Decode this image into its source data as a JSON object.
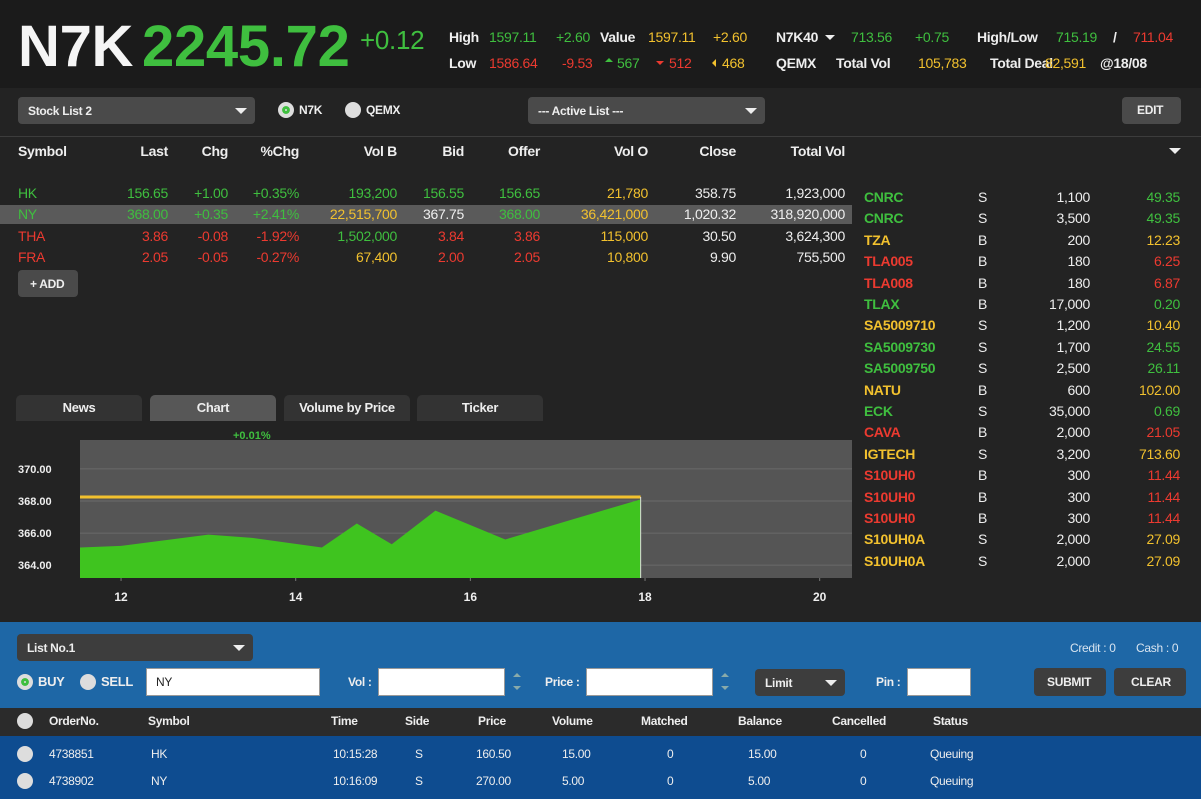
{
  "header": {
    "symbol": "N7K",
    "price": "2245.72",
    "change": "+0.12"
  },
  "stats": [
    {
      "text": "High",
      "color": "white"
    },
    {
      "text": "1597.11",
      "color": "green"
    },
    {
      "text": "+2.60",
      "color": "green"
    },
    {
      "text": "Value",
      "color": "white"
    },
    {
      "text": "1597.11",
      "color": "yellow"
    },
    {
      "text": "+2.60",
      "color": "yellow"
    },
    {
      "text": "N7K40",
      "color": "white"
    },
    {
      "text": "713.56",
      "color": "green"
    },
    {
      "text": "+0.75",
      "color": "green"
    },
    {
      "text": "High/Low",
      "color": "white"
    },
    {
      "text": "715.19",
      "color": "green"
    },
    {
      "text": "/",
      "color": "white"
    },
    {
      "text": "711.04",
      "color": "red"
    },
    {
      "text": "Low",
      "color": "white"
    },
    {
      "text": "1586.64",
      "color": "red"
    },
    {
      "text": "-9.53",
      "color": "red"
    },
    {
      "text": "567",
      "color": "green"
    },
    {
      "text": "512",
      "color": "red"
    },
    {
      "text": "468",
      "color": "yellow"
    },
    {
      "text": "QEMX",
      "color": "white"
    },
    {
      "text": "Total Vol",
      "color": "white"
    },
    {
      "text": "105,783",
      "color": "yellow"
    },
    {
      "text": "Total Deal",
      "color": "white"
    },
    {
      "text": "82,591",
      "color": "yellow"
    },
    {
      "text": "@18/08",
      "color": "white"
    }
  ],
  "controls": {
    "stock_list": "Stock List 2",
    "market_options": [
      "N7K",
      "QEMX"
    ],
    "selected_market": 0,
    "active_list": "--- Active List ---",
    "edit": "EDIT"
  },
  "watchlist": {
    "columns": [
      "Symbol",
      "Last",
      "Chg",
      "%Chg",
      "Vol B",
      "Bid",
      "Offer",
      "Vol O",
      "Close",
      "Total Vol"
    ],
    "selected_row": 1,
    "rows": [
      {
        "cells": [
          "HK",
          "156.65",
          "+1.00",
          "+0.35%",
          "193,200",
          "156.55",
          "156.65",
          "21,780",
          "358.75",
          "1,923,000"
        ],
        "colors": [
          "green",
          "green",
          "green",
          "green",
          "green",
          "green",
          "green",
          "yellow",
          "white",
          "white"
        ]
      },
      {
        "cells": [
          "NY",
          "368.00",
          "+0.35",
          "+2.41%",
          "22,515,700",
          "367.75",
          "368.00",
          "36,421,000",
          "1,020.32",
          "318,920,000"
        ],
        "colors": [
          "green",
          "green",
          "green",
          "green",
          "yellow",
          "white",
          "green",
          "yellow",
          "white",
          "white"
        ]
      },
      {
        "cells": [
          "THA",
          "3.86",
          "-0.08",
          "-1.92%",
          "1,502,000",
          "3.84",
          "3.86",
          "115,000",
          "30.50",
          "3,624,300"
        ],
        "colors": [
          "red",
          "red",
          "red",
          "red",
          "green",
          "red",
          "red",
          "yellow",
          "white",
          "white"
        ]
      },
      {
        "cells": [
          "FRA",
          "2.05",
          "-0.05",
          "-0.27%",
          "67,400",
          "2.00",
          "2.05",
          "10,800",
          "9.90",
          "755,500"
        ],
        "colors": [
          "red",
          "red",
          "red",
          "red",
          "yellow",
          "red",
          "red",
          "yellow",
          "white",
          "white"
        ]
      }
    ],
    "add_button": "+ ADD"
  },
  "ticker": [
    {
      "cells": [
        "CNRC",
        "S",
        "1,100",
        "49.35"
      ],
      "color": "green"
    },
    {
      "cells": [
        "CNRC",
        "S",
        "3,500",
        "49.35"
      ],
      "color": "green"
    },
    {
      "cells": [
        "TZA",
        "B",
        "200",
        "12.23"
      ],
      "color": "yellow"
    },
    {
      "cells": [
        "TLA005",
        "B",
        "180",
        "6.25"
      ],
      "color": "red"
    },
    {
      "cells": [
        "TLA008",
        "B",
        "180",
        "6.87"
      ],
      "color": "red"
    },
    {
      "cells": [
        "TLAX",
        "B",
        "17,000",
        "0.20"
      ],
      "color": "green"
    },
    {
      "cells": [
        "SA5009710",
        "S",
        "1,200",
        "10.40"
      ],
      "color": "yellow"
    },
    {
      "cells": [
        "SA5009730",
        "S",
        "1,700",
        "24.55"
      ],
      "color": "green"
    },
    {
      "cells": [
        "SA5009750",
        "S",
        "2,500",
        "26.11"
      ],
      "color": "green"
    },
    {
      "cells": [
        "NATU",
        "B",
        "600",
        "102.00"
      ],
      "color": "yellow"
    },
    {
      "cells": [
        "ECK",
        "S",
        "35,000",
        "0.69"
      ],
      "color": "green"
    },
    {
      "cells": [
        "CAVA",
        "B",
        "2,000",
        "21.05"
      ],
      "color": "red"
    },
    {
      "cells": [
        "IGTECH",
        "S",
        "3,200",
        "713.60"
      ],
      "color": "yellow"
    },
    {
      "cells": [
        "S10UH0",
        "B",
        "300",
        "11.44"
      ],
      "color": "red"
    },
    {
      "cells": [
        "S10UH0",
        "B",
        "300",
        "11.44"
      ],
      "color": "red"
    },
    {
      "cells": [
        "S10UH0",
        "B",
        "300",
        "11.44"
      ],
      "color": "red"
    },
    {
      "cells": [
        "S10UH0A",
        "S",
        "2,000",
        "27.09"
      ],
      "color": "yellow"
    },
    {
      "cells": [
        "S10UH0A",
        "S",
        "2,000",
        "27.09"
      ],
      "color": "yellow"
    }
  ],
  "tabs": [
    "News",
    "Chart",
    "Volume by Price",
    "Ticker"
  ],
  "active_tab": 1,
  "chart_data": {
    "type": "area",
    "annotation": "+0.01%",
    "x": [
      11.53,
      12,
      13,
      13.5,
      14.3,
      14.7,
      15.1,
      15.6,
      16.4,
      17.2,
      17.95
    ],
    "values": [
      365.1,
      365.2,
      365.9,
      365.7,
      365.1,
      366.6,
      365.3,
      367.4,
      365.6,
      366.9,
      368.1
    ],
    "color": "#3fc41f",
    "reference_line": 368.25,
    "reference_color": "#f2c12e",
    "xlim": [
      11.53,
      20.37
    ],
    "ylim": [
      363.2,
      371.8
    ],
    "xticks": [
      12,
      14,
      16,
      18,
      20
    ],
    "yticks": [
      {
        "value": 364,
        "label": "364.00"
      },
      {
        "value": 366,
        "label": "366.00"
      },
      {
        "value": 368,
        "label": "368.00"
      },
      {
        "value": 370,
        "label": "370.00"
      }
    ],
    "grid": true
  },
  "order_entry": {
    "list": "List No.1",
    "credit": "Credit : 0",
    "cash": "Cash : 0",
    "sides": [
      "BUY",
      "SELL"
    ],
    "selected_side": 0,
    "symbol_input": "NY",
    "vol_label": "Vol :",
    "price_label": "Price :",
    "order_type": "Limit",
    "pin_label": "Pin :",
    "submit": "SUBMIT",
    "clear": "CLEAR"
  },
  "orders": {
    "columns": [
      "OrderNo.",
      "Symbol",
      "Time",
      "Side",
      "Price",
      "Volume",
      "Matched",
      "Balance",
      "Cancelled",
      "Status"
    ],
    "rows": [
      [
        "4738851",
        "HK",
        "10:15:28",
        "S",
        "160.50",
        "15.00",
        "0",
        "15.00",
        "0",
        "Queuing"
      ],
      [
        "4738902",
        "NY",
        "10:16:09",
        "S",
        "270.00",
        "5.00",
        "0",
        "5.00",
        "0",
        "Queuing"
      ]
    ]
  }
}
